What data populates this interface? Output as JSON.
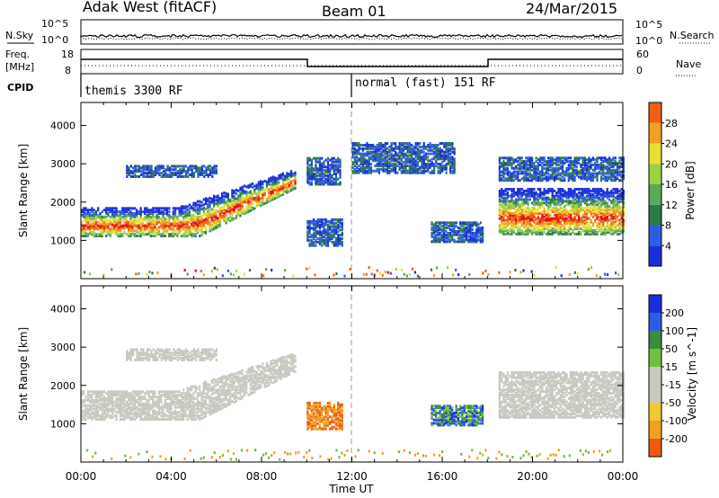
{
  "header": {
    "station": "Adak West (fitACF)",
    "beam": "Beam 01",
    "date": "24/Mar/2015"
  },
  "panels": {
    "nsky_label": "N.Sky",
    "nsearch_label": "N.Search",
    "nsky_ticks": [
      "10^5",
      "10^0"
    ],
    "nsearch_ticks": [
      "10^5",
      "10^0"
    ],
    "freq_label_1": "Freq.",
    "freq_label_2": "[MHz]",
    "freq_ticks": [
      "18",
      "8"
    ],
    "nave_label": "Nave",
    "nave_ticks": [
      "60",
      "0"
    ],
    "cpid_label": "CPID",
    "cpid_segments": [
      {
        "label": "themis 3300 RF",
        "start": "00:00"
      },
      {
        "label": "normal (fast) 151 RF",
        "start": "12:00"
      }
    ]
  },
  "colors": {
    "power_scale": [
      "#1b2fd9",
      "#2e5ee0",
      "#2b7a4a",
      "#5aa85a",
      "#9cd044",
      "#e8e030",
      "#f0a020",
      "#ef6010",
      "#e01010"
    ],
    "velocity_scale": [
      "#e01010",
      "#f05a10",
      "#f0a020",
      "#f0c830",
      "#c9c9c0",
      "#c9c9c0",
      "#70c040",
      "#3c8c3c",
      "#2e5ee0",
      "#1b2fd9"
    ],
    "ground_scatter": "#c8c8c0"
  },
  "chart_data": [
    {
      "type": "heatmap",
      "title": "",
      "xlabel": "Time UT",
      "ylabel": "Slant Range [km]",
      "xlim": [
        "00:00",
        "00:00"
      ],
      "x_ticks": [
        "00:00",
        "04:00",
        "08:00",
        "12:00",
        "16:00",
        "20:00",
        "00:00"
      ],
      "ylim": [
        0,
        4600
      ],
      "y_ticks": [
        1000,
        2000,
        3000,
        4000
      ],
      "colorbar": {
        "label": "Power [dB]",
        "ticks": [
          4,
          8,
          12,
          16,
          20,
          24,
          28
        ],
        "range": [
          0,
          32
        ]
      },
      "regions": [
        {
          "hours": [
            0,
            9.5
          ],
          "range_km": [
            1100,
            2800
          ],
          "value": "12-28 dB (peak core)"
        },
        {
          "hours": [
            2,
            6
          ],
          "range_km": [
            2700,
            3000
          ],
          "value": "8-12 dB"
        },
        {
          "hours": [
            10,
            11.6
          ],
          "range_km": [
            900,
            1600
          ],
          "value": "4-10 dB"
        },
        {
          "hours": [
            10,
            11.5
          ],
          "range_km": [
            2500,
            3200
          ],
          "value": "4-10 dB"
        },
        {
          "hours": [
            12,
            16.5
          ],
          "range_km": [
            2800,
            3600
          ],
          "value": "4-8 dB"
        },
        {
          "hours": [
            15.5,
            17.8
          ],
          "range_km": [
            1000,
            1500
          ],
          "value": "4-10 dB"
        },
        {
          "hours": [
            18.5,
            24
          ],
          "range_km": [
            1200,
            2400
          ],
          "value": "12-28 dB"
        },
        {
          "hours": [
            18.5,
            24
          ],
          "range_km": [
            2600,
            3200
          ],
          "value": "4-10 dB"
        }
      ]
    },
    {
      "type": "heatmap",
      "title": "",
      "xlabel": "Time UT",
      "ylabel": "Slant Range [km]",
      "xlim": [
        "00:00",
        "00:00"
      ],
      "x_ticks": [
        "00:00",
        "04:00",
        "08:00",
        "12:00",
        "16:00",
        "20:00",
        "00:00"
      ],
      "ylim": [
        0,
        4600
      ],
      "y_ticks": [
        1000,
        2000,
        3000,
        4000
      ],
      "colorbar": {
        "label": "Velocity [m s^-1]",
        "ticks": [
          200,
          100,
          50,
          15,
          -15,
          -50,
          -100,
          -200
        ],
        "range": [
          -250,
          250
        ]
      },
      "regions": [
        {
          "hours": [
            0,
            9.5
          ],
          "range_km": [
            1100,
            2800
          ],
          "value": "ground scatter"
        },
        {
          "hours": [
            2,
            6
          ],
          "range_km": [
            2700,
            3000
          ],
          "value": "ground scatter"
        },
        {
          "hours": [
            10,
            11.6
          ],
          "range_km": [
            900,
            1600
          ],
          "value": "-50 to -100 m/s"
        },
        {
          "hours": [
            15.5,
            17.8
          ],
          "range_km": [
            1000,
            1500
          ],
          "value": "+50 to +200 m/s"
        },
        {
          "hours": [
            18.5,
            24
          ],
          "range_km": [
            1200,
            2400
          ],
          "value": "ground scatter"
        }
      ]
    }
  ]
}
